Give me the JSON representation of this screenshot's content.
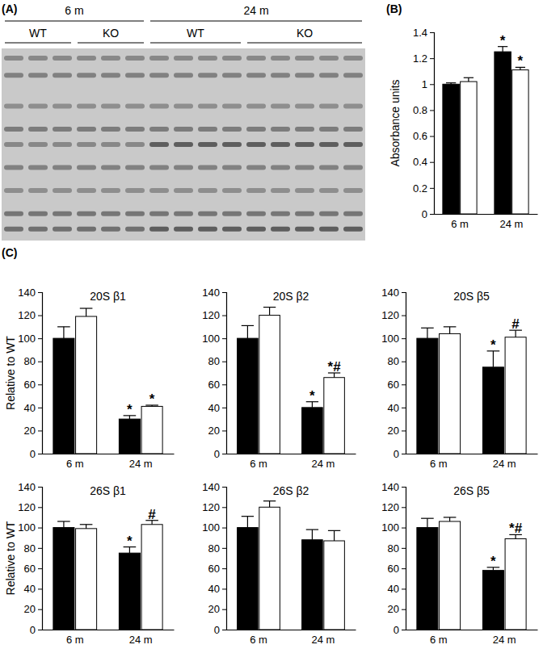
{
  "blot": {
    "label": "(A)",
    "groups": [
      {
        "label": "6 m",
        "lanes": [
          "WT",
          "KO"
        ]
      },
      {
        "label": "24 m",
        "lanes": [
          "WT",
          "KO"
        ]
      }
    ]
  },
  "panel_labels": [
    "(B)",
    "(C)"
  ],
  "chart_data": [
    {
      "type": "bar",
      "y_label": "Absorbance units",
      "categories": [
        "6 m",
        "24 m"
      ],
      "series": [
        {
          "color": "#000000",
          "values": [
            1.0,
            1.25
          ],
          "errors": [
            0.01,
            0.04
          ],
          "annotations": [
            null,
            "*"
          ]
        },
        {
          "color": "#ffffff",
          "values": [
            1.02,
            1.11
          ],
          "errors": [
            0.03,
            0.02
          ],
          "annotations": [
            null,
            "*"
          ]
        }
      ],
      "ylim": [
        0,
        1.4
      ],
      "yticks": [
        0,
        0.2,
        0.4,
        0.6,
        0.8,
        1,
        1.2,
        1.4
      ]
    },
    {
      "type": "bar",
      "title": "20S β1",
      "y_label": "Relative to WT",
      "categories": [
        "6 m",
        "24 m"
      ],
      "series": [
        {
          "color": "#000000",
          "values": [
            100,
            30
          ],
          "errors": [
            10,
            3
          ],
          "annotations": [
            null,
            "*"
          ]
        },
        {
          "color": "#ffffff",
          "values": [
            119,
            41
          ],
          "errors": [
            7,
            1
          ],
          "annotations": [
            null,
            "*"
          ]
        }
      ],
      "ylim": [
        0,
        140
      ],
      "yticks": [
        0,
        20,
        40,
        60,
        80,
        100,
        120,
        140
      ]
    },
    {
      "type": "bar",
      "title": "20S β2",
      "categories": [
        "6 m",
        "24 m"
      ],
      "series": [
        {
          "color": "#000000",
          "values": [
            100,
            40
          ],
          "errors": [
            11,
            5
          ],
          "annotations": [
            null,
            "*"
          ]
        },
        {
          "color": "#ffffff",
          "values": [
            120,
            66
          ],
          "errors": [
            7,
            4
          ],
          "annotations": [
            null,
            "*#"
          ]
        }
      ],
      "ylim": [
        0,
        140
      ],
      "yticks": [
        0,
        20,
        40,
        60,
        80,
        100,
        120,
        140
      ]
    },
    {
      "type": "bar",
      "title": "20S β5",
      "categories": [
        "6 m",
        "24 m"
      ],
      "series": [
        {
          "color": "#000000",
          "values": [
            100,
            75
          ],
          "errors": [
            9,
            14
          ],
          "annotations": [
            null,
            "*"
          ]
        },
        {
          "color": "#ffffff",
          "values": [
            104,
            101
          ],
          "errors": [
            6,
            6
          ],
          "annotations": [
            null,
            "#"
          ]
        }
      ],
      "ylim": [
        0,
        140
      ],
      "yticks": [
        0,
        20,
        40,
        60,
        80,
        100,
        120,
        140
      ]
    },
    {
      "type": "bar",
      "title": "26S β1",
      "y_label": "Relative to WT",
      "categories": [
        "6 m",
        "24 m"
      ],
      "series": [
        {
          "color": "#000000",
          "values": [
            100,
            75
          ],
          "errors": [
            6,
            6
          ],
          "annotations": [
            null,
            "*"
          ]
        },
        {
          "color": "#ffffff",
          "values": [
            99,
            103
          ],
          "errors": [
            4,
            4
          ],
          "annotations": [
            null,
            "#"
          ]
        }
      ],
      "ylim": [
        0,
        140
      ],
      "yticks": [
        0,
        20,
        40,
        60,
        80,
        100,
        120,
        140
      ]
    },
    {
      "type": "bar",
      "title": "26S β2",
      "categories": [
        "6 m",
        "24 m"
      ],
      "series": [
        {
          "color": "#000000",
          "values": [
            100,
            88
          ],
          "errors": [
            11,
            10
          ]
        },
        {
          "color": "#ffffff",
          "values": [
            120,
            87
          ],
          "errors": [
            6,
            10
          ]
        }
      ],
      "ylim": [
        0,
        140
      ],
      "yticks": [
        0,
        20,
        40,
        60,
        80,
        100,
        120,
        140
      ]
    },
    {
      "type": "bar",
      "title": "26S β5",
      "categories": [
        "6 m",
        "24 m"
      ],
      "series": [
        {
          "color": "#000000",
          "values": [
            100,
            58
          ],
          "errors": [
            9,
            3
          ],
          "annotations": [
            null,
            "*"
          ]
        },
        {
          "color": "#ffffff",
          "values": [
            106,
            89
          ],
          "errors": [
            4,
            4
          ],
          "annotations": [
            null,
            "*#"
          ]
        }
      ],
      "ylim": [
        0,
        140
      ],
      "yticks": [
        0,
        20,
        40,
        60,
        80,
        100,
        120,
        140
      ]
    }
  ]
}
